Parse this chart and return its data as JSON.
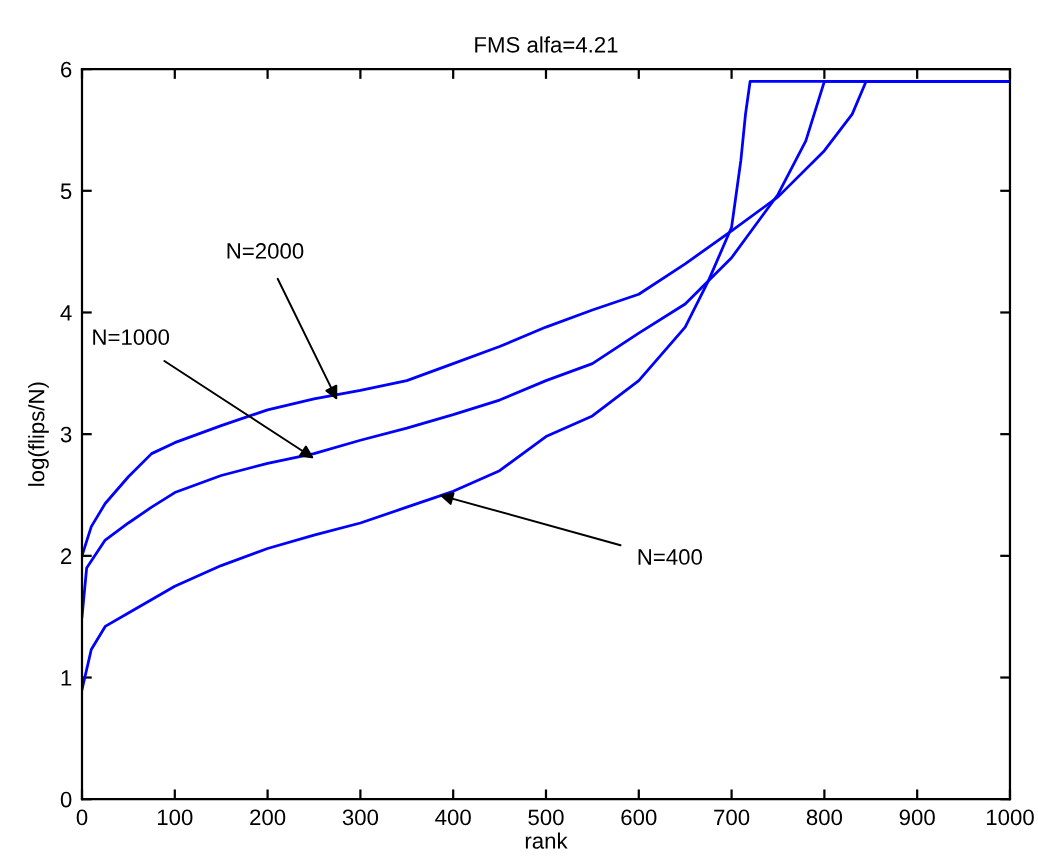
{
  "chart_data": {
    "type": "line",
    "title": "FMS alfa=4.21",
    "xlabel": "rank",
    "ylabel": "log(flips/N)",
    "xlim": [
      0,
      1000
    ],
    "ylim": [
      0,
      6
    ],
    "xticks": [
      0,
      100,
      200,
      300,
      400,
      500,
      600,
      700,
      800,
      900,
      1000
    ],
    "yticks": [
      0,
      1,
      2,
      3,
      4,
      5,
      6
    ],
    "grid": false,
    "legend": false,
    "series": [
      {
        "color": "#0000ff",
        "x": [
          0,
          10,
          25,
          50,
          75,
          100,
          150,
          200,
          250,
          300,
          350,
          400,
          450,
          500,
          550,
          600,
          650,
          700,
          750,
          800,
          830,
          845,
          1000
        ],
        "values": [
          2.0,
          2.24,
          2.43,
          2.65,
          2.84,
          2.93,
          3.07,
          3.2,
          3.29,
          3.36,
          3.44,
          3.58,
          3.72,
          3.88,
          4.02,
          4.15,
          4.4,
          4.67,
          4.95,
          5.33,
          5.63,
          5.9,
          5.9
        ]
      },
      {
        "color": "#0000ff",
        "x": [
          0,
          5,
          25,
          50,
          75,
          100,
          150,
          200,
          250,
          300,
          350,
          400,
          450,
          500,
          550,
          600,
          650,
          700,
          750,
          780,
          800,
          1000
        ],
        "values": [
          1.5,
          1.9,
          2.13,
          2.27,
          2.4,
          2.52,
          2.66,
          2.76,
          2.84,
          2.95,
          3.05,
          3.16,
          3.28,
          3.44,
          3.58,
          3.83,
          4.07,
          4.45,
          4.97,
          5.41,
          5.9,
          5.9
        ]
      },
      {
        "color": "#0000ff",
        "x": [
          0,
          10,
          25,
          50,
          100,
          150,
          200,
          250,
          300,
          350,
          400,
          450,
          500,
          550,
          600,
          650,
          675,
          700,
          710,
          715,
          720,
          1000
        ],
        "values": [
          0.9,
          1.23,
          1.42,
          1.53,
          1.75,
          1.92,
          2.06,
          2.17,
          2.27,
          2.4,
          2.53,
          2.7,
          2.98,
          3.15,
          3.44,
          3.88,
          4.26,
          4.7,
          5.25,
          5.63,
          5.9,
          5.9
        ]
      }
    ],
    "annotations": [
      {
        "text": "N=2000",
        "x": 275,
        "y": 3.28
      },
      {
        "text": "N=1000",
        "x": 250,
        "y": 2.8
      },
      {
        "text": "N=400",
        "x": 385,
        "y": 2.5
      }
    ]
  }
}
